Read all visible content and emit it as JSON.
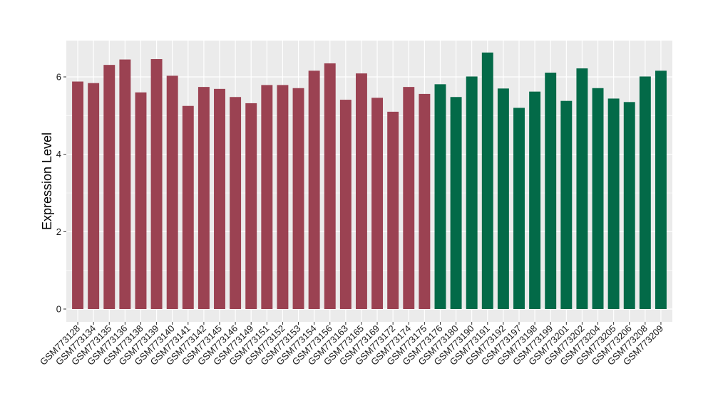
{
  "chart_data": {
    "type": "bar",
    "title": "",
    "xlabel": "",
    "ylabel": "Expression Level",
    "ylim": [
      0,
      6.9
    ],
    "yticks": [
      0,
      2,
      4,
      6
    ],
    "grid": true,
    "legend": "none",
    "colors": {
      "group_a": "#9B4252",
      "group_b": "#036A48",
      "panel_bg": "#EBEBEB",
      "grid": "#FFFFFF"
    },
    "categories": [
      "GSM773128",
      "GSM773134",
      "GSM773135",
      "GSM773136",
      "GSM773138",
      "GSM773139",
      "GSM773140",
      "GSM773141",
      "GSM773142",
      "GSM773145",
      "GSM773146",
      "GSM773149",
      "GSM773151",
      "GSM773152",
      "GSM773153",
      "GSM773154",
      "GSM773156",
      "GSM773163",
      "GSM773165",
      "GSM773169",
      "GSM773172",
      "GSM773174",
      "GSM773175",
      "GSM773176",
      "GSM773180",
      "GSM773190",
      "GSM773191",
      "GSM773192",
      "GSM773197",
      "GSM773198",
      "GSM773199",
      "GSM773201",
      "GSM773202",
      "GSM773204",
      "GSM773205",
      "GSM773206",
      "GSM773208",
      "GSM773209"
    ],
    "values": [
      5.88,
      5.84,
      6.31,
      6.45,
      5.6,
      6.46,
      6.03,
      5.25,
      5.74,
      5.69,
      5.48,
      5.32,
      5.79,
      5.79,
      5.71,
      6.16,
      6.35,
      5.41,
      6.09,
      5.46,
      5.1,
      5.74,
      5.56,
      5.81,
      5.48,
      6.01,
      6.63,
      5.7,
      5.2,
      5.62,
      6.11,
      5.38,
      6.22,
      5.71,
      5.44,
      5.35,
      6.01,
      6.16
    ],
    "groups": [
      "a",
      "a",
      "a",
      "a",
      "a",
      "a",
      "a",
      "a",
      "a",
      "a",
      "a",
      "a",
      "a",
      "a",
      "a",
      "a",
      "a",
      "a",
      "a",
      "a",
      "a",
      "a",
      "a",
      "b",
      "b",
      "b",
      "b",
      "b",
      "b",
      "b",
      "b",
      "b",
      "b",
      "b",
      "b",
      "b",
      "b",
      "b"
    ]
  }
}
